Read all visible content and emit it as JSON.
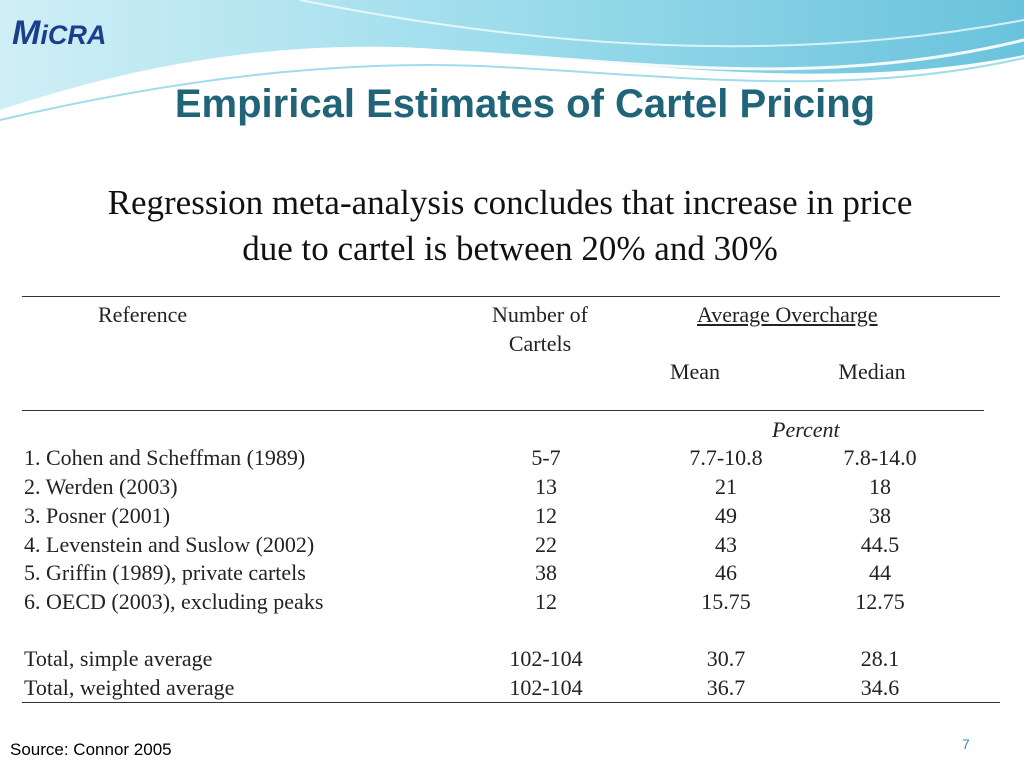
{
  "logo": {
    "first": "M",
    "rest": "iCRA"
  },
  "title": "Empirical Estimates of Cartel Pricing",
  "subtitle_line1": "Regression meta-analysis concludes that increase in price",
  "subtitle_line2": "due to cartel is between 20% and 30%",
  "table": {
    "headers": {
      "reference": "Reference",
      "number_line1": "Number of",
      "number_line2": "Cartels",
      "average_overcharge": "Average Overcharge",
      "mean": "Mean",
      "median": "Median",
      "unit": "Percent"
    },
    "rows": [
      {
        "label": "1.   Cohen and Scheffman (1989)",
        "number": "5-7",
        "mean": "7.7-10.8",
        "median": "7.8-14.0"
      },
      {
        "label": "2.   Werden (2003)",
        "number": "13",
        "mean": "21",
        "median": "18"
      },
      {
        "label": "3.   Posner (2001)",
        "number": "12",
        "mean": "49",
        "median": "38"
      },
      {
        "label": "4.   Levenstein and Suslow (2002)",
        "number": "22",
        "mean": "43",
        "median": "44.5"
      },
      {
        "label": "5.   Griffin (1989), private cartels",
        "number": "38",
        "mean": "46",
        "median": "44"
      },
      {
        "label": "6.   OECD (2003), excluding peaks",
        "number": "12",
        "mean": "15.75",
        "median": "12.75"
      }
    ],
    "totals": [
      {
        "label": "Total, simple average",
        "number": "102-104",
        "mean": "30.7",
        "median": "28.1"
      },
      {
        "label": "Total, weighted average",
        "number": "102-104",
        "mean": "36.7",
        "median": "34.6"
      }
    ]
  },
  "source": "Source: Connor 2005",
  "page_number": "7",
  "colors": {
    "title": "#1f6478",
    "logo": "#1a3e8c",
    "wave": "#5bc0d8"
  }
}
